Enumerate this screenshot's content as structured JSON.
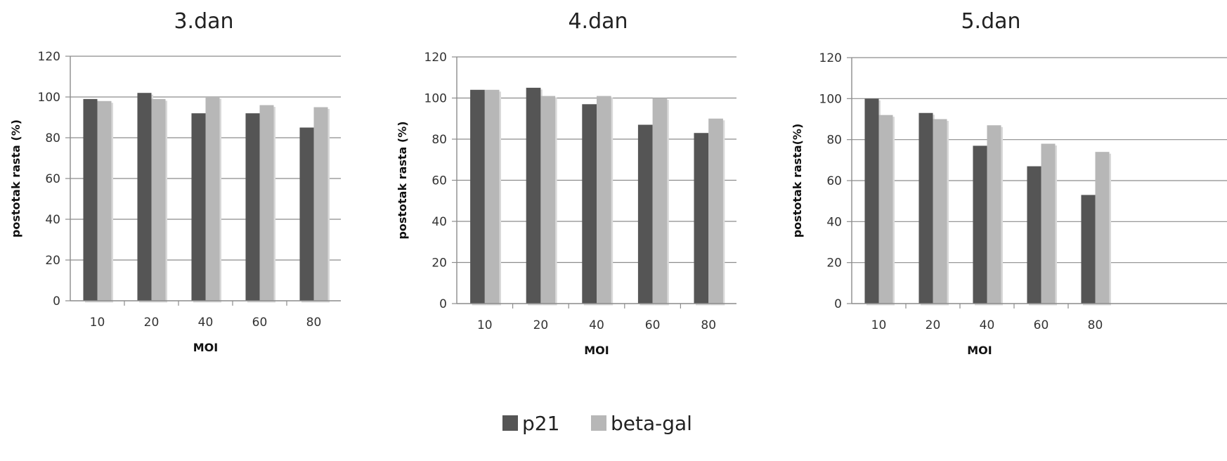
{
  "colors": {
    "p21": "#555555",
    "beta_gal": "#b7b7b7",
    "gridline": "#8c8c8c",
    "axis": "#8c8c8c"
  },
  "legend": {
    "items": [
      {
        "label": "p21",
        "color": "#555555"
      },
      {
        "label": "beta-gal",
        "color": "#b7b7b7"
      }
    ],
    "placement": "bottom-center"
  },
  "chart_data": [
    {
      "type": "bar",
      "title": "3.dan",
      "xlabel": "MOI",
      "ylabel": "postotak rasta (%)",
      "categories": [
        "10",
        "20",
        "40",
        "60",
        "80"
      ],
      "ylim": [
        0,
        120
      ],
      "yticks": [
        0,
        20,
        40,
        60,
        80,
        100,
        120
      ],
      "grid": true,
      "series": [
        {
          "name": "p21",
          "values": [
            99,
            102,
            92,
            92,
            85
          ]
        },
        {
          "name": "beta-gal",
          "values": [
            98,
            99,
            100,
            96,
            95
          ]
        }
      ]
    },
    {
      "type": "bar",
      "title": "4.dan",
      "xlabel": "MOI",
      "ylabel": "postotak rasta (%)",
      "categories": [
        "10",
        "20",
        "40",
        "60",
        "80"
      ],
      "ylim": [
        0,
        120
      ],
      "yticks": [
        0,
        20,
        40,
        60,
        80,
        100,
        120
      ],
      "grid": true,
      "series": [
        {
          "name": "p21",
          "values": [
            104,
            105,
            97,
            87,
            83
          ]
        },
        {
          "name": "beta-gal",
          "values": [
            104,
            101,
            101,
            100,
            90
          ]
        }
      ]
    },
    {
      "type": "bar",
      "title": "5.dan",
      "xlabel": "MOI",
      "ylabel": "postotak rasta(%)",
      "categories": [
        "10",
        "20",
        "40",
        "60",
        "80"
      ],
      "ylim": [
        0,
        120
      ],
      "yticks": [
        0,
        20,
        40,
        60,
        80,
        100,
        120
      ],
      "grid": true,
      "series": [
        {
          "name": "p21",
          "values": [
            100,
            93,
            77,
            67,
            53
          ]
        },
        {
          "name": "beta-gal",
          "values": [
            92,
            90,
            87,
            78,
            74
          ]
        }
      ]
    }
  ]
}
